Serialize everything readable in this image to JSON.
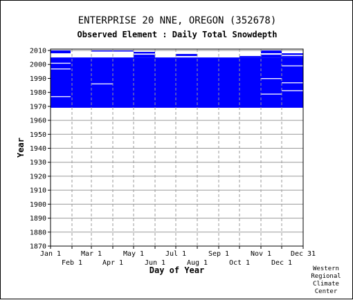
{
  "chart_data": {
    "type": "heatmap",
    "title": "ENTERPRISE 20 NNE, OREGON   (352678)",
    "subtitle": "Observed Element : Daily Total Snowdepth",
    "xlabel": "Day of Year",
    "ylabel": "Year",
    "x_range": [
      1,
      366
    ],
    "ylim": [
      1870,
      2011
    ],
    "y_ticks": [
      1870,
      1880,
      1890,
      1900,
      1910,
      1920,
      1930,
      1940,
      1950,
      1960,
      1970,
      1980,
      1990,
      2000,
      2010
    ],
    "x_ticks_top": [
      {
        "label": "Jan 1",
        "day": 1
      },
      {
        "label": "Mar 1",
        "day": 60
      },
      {
        "label": "May 1",
        "day": 121
      },
      {
        "label": "Jul 1",
        "day": 182
      },
      {
        "label": "Sep 1",
        "day": 244
      },
      {
        "label": "Nov 1",
        "day": 305
      },
      {
        "label": "Dec 31",
        "day": 366
      }
    ],
    "x_ticks_bottom": [
      {
        "label": "Feb 1",
        "day": 32
      },
      {
        "label": "Apr 1",
        "day": 91
      },
      {
        "label": "Jun 1",
        "day": 152
      },
      {
        "label": "Aug 1",
        "day": 213
      },
      {
        "label": "Oct 1",
        "day": 274
      },
      {
        "label": "Dec 1",
        "day": 335
      }
    ],
    "grid": true,
    "color": "#0000ff",
    "data_coverage": {
      "main_block": {
        "years": [
          1969,
          2005
        ]
      },
      "segments_after_2005": [
        {
          "start_day": 1,
          "end_day": 30,
          "years": [
            [
              2008,
              2010
            ]
          ]
        },
        {
          "start_day": 30,
          "end_day": 60,
          "years": []
        },
        {
          "start_day": 60,
          "end_day": 121,
          "years": [
            [
              2009.5,
              2010
            ]
          ]
        },
        {
          "start_day": 121,
          "end_day": 152,
          "years": [
            [
              2005,
              2007
            ],
            [
              2007.8,
              2009
            ]
          ]
        },
        {
          "start_day": 152,
          "end_day": 182,
          "years": []
        },
        {
          "start_day": 182,
          "end_day": 213,
          "years": [
            [
              2006,
              2007.5
            ]
          ]
        },
        {
          "start_day": 213,
          "end_day": 244,
          "years": []
        },
        {
          "start_day": 244,
          "end_day": 274,
          "years": [
            [
              2002.5,
              2003
            ]
          ]
        },
        {
          "start_day": 274,
          "end_day": 305,
          "years": [
            [
              2005,
              2006
            ]
          ]
        },
        {
          "start_day": 305,
          "end_day": 335,
          "years": [
            [
              2005,
              2007
            ],
            [
              2008,
              2010
            ]
          ]
        },
        {
          "start_day": 335,
          "end_day": 366,
          "years": [
            [
              2005,
              2006
            ],
            [
              2006.8,
              2008
            ]
          ]
        }
      ]
    }
  },
  "credit": [
    "Western",
    "Regional",
    "Climate",
    "Center"
  ]
}
